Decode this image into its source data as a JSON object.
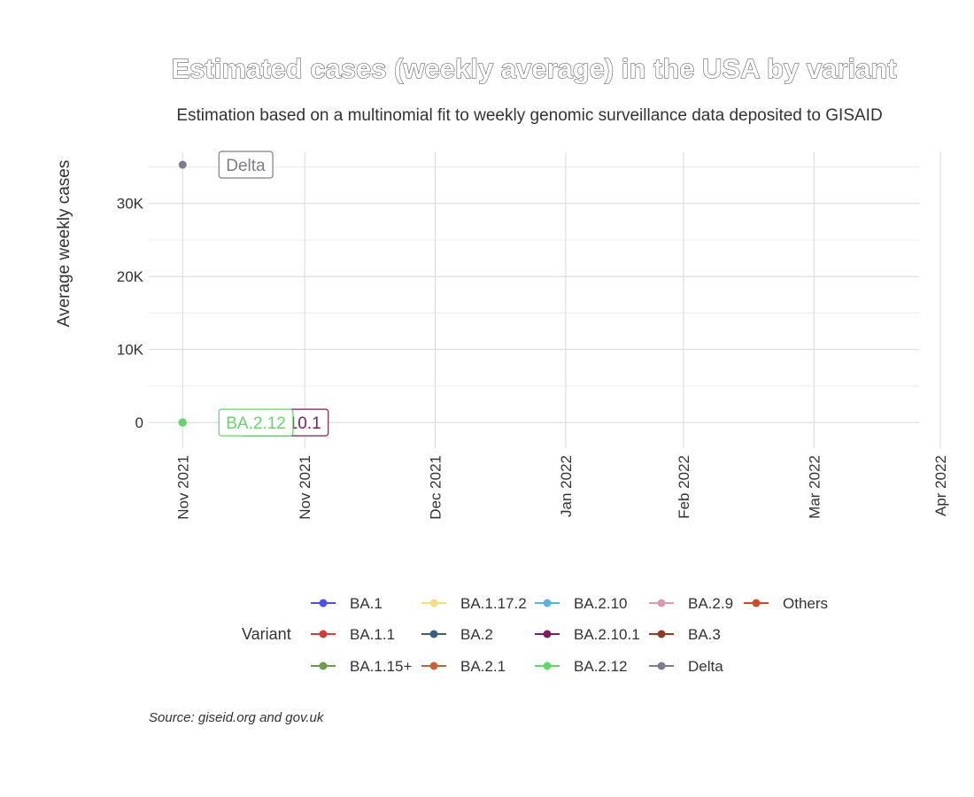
{
  "chart_data": {
    "type": "line",
    "title": "Estimated cases (weekly average) in the USA by variant",
    "subtitle": "Estimation based on a multinomial fit to weekly genomic surveillance data deposited to GISAID",
    "ylabel": "Average weekly cases",
    "xlabel": "",
    "caption": "Source: giseid.org and gov.uk",
    "ylim": [
      -3500,
      37000
    ],
    "yticks": [
      {
        "value": 0,
        "label": "0"
      },
      {
        "value": 10000,
        "label": "10K"
      },
      {
        "value": 20000,
        "label": "20K"
      },
      {
        "value": 30000,
        "label": "30K"
      }
    ],
    "xlim": [
      "2021-10-29",
      "2022-04-30"
    ],
    "xticks": [
      {
        "value": "2021-11-01",
        "label": "Nov 2021"
      },
      {
        "value": "2021-11-30",
        "label": "Nov 2021"
      },
      {
        "value": "2021-12-31",
        "label": "Dec 2021"
      },
      {
        "value": "2022-01-31",
        "label": "Jan 2022"
      },
      {
        "value": "2022-02-28",
        "label": "Feb 2022"
      },
      {
        "value": "2022-03-31",
        "label": "Mar 2022"
      },
      {
        "value": "2022-04-30",
        "label": "Apr 2022"
      }
    ],
    "grid": true,
    "legend": {
      "title": "Variant",
      "position": "bottom",
      "entries": [
        {
          "name": "BA.1",
          "color": "#4b4ee8"
        },
        {
          "name": "BA.1.1",
          "color": "#c94040"
        },
        {
          "name": "BA.1.15+",
          "color": "#6f9a4c"
        },
        {
          "name": "BA.1.17.2",
          "color": "#f2de8a"
        },
        {
          "name": "BA.2",
          "color": "#3f5f7f"
        },
        {
          "name": "BA.2.1",
          "color": "#c0643c"
        },
        {
          "name": "BA.2.10",
          "color": "#5fb0de"
        },
        {
          "name": "BA.2.10.1",
          "color": "#7a1f62"
        },
        {
          "name": "BA.2.12",
          "color": "#63d66a"
        },
        {
          "name": "BA.2.9",
          "color": "#d89aad"
        },
        {
          "name": "BA.3",
          "color": "#8a3e22"
        },
        {
          "name": "Delta",
          "color": "#7d7d8f"
        },
        {
          "name": "Others",
          "color": "#c24f2e"
        }
      ]
    },
    "series": [
      {
        "name": "Delta",
        "color": "#7d7d8f",
        "points": [
          {
            "x": "2021-11-01",
            "y": 35300
          }
        ]
      },
      {
        "name": "BA.2.10.1",
        "color": "#7a1f62",
        "points": [
          {
            "x": "2021-11-01",
            "y": 0
          }
        ]
      },
      {
        "name": "BA.2.12",
        "color": "#63d66a",
        "points": [
          {
            "x": "2021-11-01",
            "y": 0
          }
        ]
      }
    ],
    "end_labels": [
      {
        "series": "Delta",
        "text": "Delta",
        "color": "#7d7d8f"
      },
      {
        "series": "BA.2.10.1",
        "text": "BA.2.10.1",
        "color": "#7a1f62"
      },
      {
        "series": "BA.2.12",
        "text": "BA.2.12",
        "color": "#63d66a"
      }
    ]
  }
}
